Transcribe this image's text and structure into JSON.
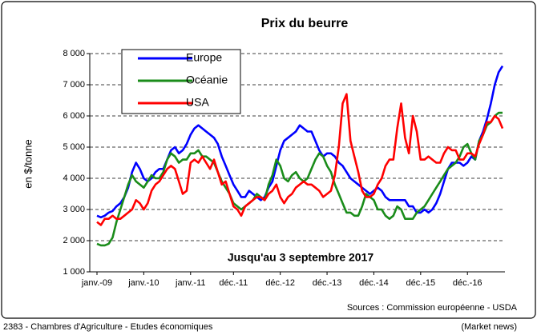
{
  "chart_data": {
    "type": "line",
    "title": "Prix du beurre",
    "y_label": "en $/tonne",
    "annotation": "Jusqu'au 3 septembre 2017",
    "footer_left": "2383 - Chambres d'Agriculture - Etudes économiques",
    "footer_right": [
      "Sources : Commission européenne - USDA",
      "(Market news)"
    ],
    "categories": [
      "janv.-09",
      null,
      null,
      null,
      null,
      null,
      null,
      null,
      null,
      null,
      null,
      null,
      "janv.-10",
      null,
      null,
      null,
      null,
      null,
      null,
      null,
      null,
      null,
      null,
      null,
      "janv.-11",
      null,
      null,
      null,
      null,
      null,
      null,
      null,
      null,
      null,
      null,
      "déc.-11",
      null,
      null,
      null,
      null,
      null,
      null,
      null,
      null,
      null,
      null,
      null,
      "déc.-12",
      null,
      null,
      null,
      null,
      null,
      null,
      null,
      null,
      null,
      null,
      null,
      "déc.-13",
      null,
      null,
      null,
      null,
      null,
      null,
      null,
      null,
      null,
      null,
      null,
      "déc.-14",
      null,
      null,
      null,
      null,
      null,
      null,
      null,
      null,
      null,
      null,
      null,
      "déc.-15",
      null,
      null,
      null,
      null,
      null,
      null,
      null,
      null,
      null,
      null,
      null,
      "déc.-16",
      null,
      null,
      null,
      null,
      null,
      null,
      null,
      null,
      null
    ],
    "series": [
      {
        "name": "Europe",
        "color": "#0000ff",
        "values": [
          2800,
          2750,
          2800,
          2900,
          2950,
          3100,
          3200,
          3400,
          3700,
          4200,
          4500,
          4300,
          4000,
          3900,
          4000,
          4200,
          4300,
          4300,
          4600,
          4900,
          5000,
          4800,
          4900,
          5100,
          5400,
          5600,
          5700,
          5600,
          5500,
          5400,
          5300,
          5100,
          4700,
          4400,
          4100,
          3800,
          3600,
          3400,
          3400,
          3600,
          3500,
          3400,
          3300,
          3400,
          3700,
          3900,
          4400,
          4900,
          5200,
          5300,
          5400,
          5500,
          5700,
          5600,
          5500,
          5500,
          5200,
          4900,
          4700,
          4800,
          4800,
          4700,
          4500,
          4400,
          4200,
          4000,
          3900,
          3800,
          3700,
          3600,
          3500,
          3600,
          3700,
          3600,
          3400,
          3300,
          3300,
          3300,
          3300,
          3300,
          3100,
          3100,
          2900,
          2900,
          3000,
          2900,
          3000,
          3200,
          3500,
          3900,
          4300,
          4500,
          4500,
          4500,
          4400,
          4500,
          4700,
          4600,
          5200,
          5500,
          5900,
          6400,
          7000,
          7400,
          7600
        ]
      },
      {
        "name": "Océanie",
        "color": "#1a8c1a",
        "values": [
          1900,
          1850,
          1850,
          1900,
          2100,
          2600,
          3000,
          3400,
          3800,
          4100,
          3900,
          3800,
          3700,
          3900,
          4100,
          4000,
          4000,
          4200,
          4600,
          4800,
          4700,
          4500,
          4600,
          4600,
          4800,
          4800,
          4900,
          4700,
          4700,
          4600,
          4500,
          4200,
          3900,
          3700,
          3500,
          3200,
          3100,
          3000,
          3100,
          3200,
          3300,
          3500,
          3400,
          3300,
          3800,
          4100,
          4600,
          4400,
          4000,
          3900,
          4100,
          4200,
          4000,
          3900,
          4000,
          4300,
          4600,
          4800,
          4700,
          4400,
          4200,
          3800,
          3500,
          3200,
          2900,
          2900,
          2800,
          2800,
          3100,
          3500,
          3400,
          3300,
          3000,
          3000,
          2800,
          2700,
          2800,
          3100,
          3000,
          2700,
          2700,
          2700,
          2900,
          3000,
          3100,
          3300,
          3500,
          3700,
          3900,
          4100,
          4300,
          4400,
          4500,
          4700,
          5000,
          5100,
          4800,
          4600,
          5200,
          5400,
          5700,
          5800,
          6000,
          6100,
          6100
        ]
      },
      {
        "name": "USA",
        "color": "#ff0000",
        "values": [
          2600,
          2500,
          2700,
          2700,
          2800,
          2700,
          2700,
          2800,
          2900,
          3000,
          3300,
          3200,
          3000,
          3200,
          3600,
          3800,
          3900,
          4100,
          4300,
          4400,
          4300,
          3900,
          3500,
          3600,
          4500,
          4600,
          4500,
          4700,
          4500,
          4300,
          4600,
          4200,
          3800,
          3900,
          3500,
          3100,
          3000,
          2800,
          3100,
          3200,
          3300,
          3400,
          3400,
          3300,
          3500,
          3600,
          3800,
          3400,
          3200,
          3400,
          3500,
          3700,
          3800,
          3900,
          3800,
          3800,
          3700,
          3600,
          3400,
          3500,
          3600,
          4100,
          5000,
          6400,
          6700,
          5200,
          4700,
          4200,
          3600,
          3400,
          3400,
          3500,
          3800,
          4000,
          4400,
          4600,
          4600,
          5600,
          6400,
          5300,
          4800,
          6000,
          5500,
          4600,
          4600,
          4700,
          4600,
          4500,
          4500,
          4800,
          5000,
          4900,
          4900,
          4600,
          4600,
          4800,
          4800,
          4700,
          5100,
          5400,
          5800,
          5800,
          6000,
          5900,
          5600
        ]
      }
    ],
    "ylim": [
      1000,
      8000
    ],
    "yticks": [
      {
        "value": 1000,
        "label": "1 000"
      },
      {
        "value": 2000,
        "label": "2 000"
      },
      {
        "value": 3000,
        "label": "3 000"
      },
      {
        "value": 4000,
        "label": "4 000"
      },
      {
        "value": 5000,
        "label": "5 000"
      },
      {
        "value": 6000,
        "label": "6 000"
      },
      {
        "value": 7000,
        "label": "7 000"
      },
      {
        "value": 8000,
        "label": "8 000"
      }
    ],
    "grid": true
  }
}
